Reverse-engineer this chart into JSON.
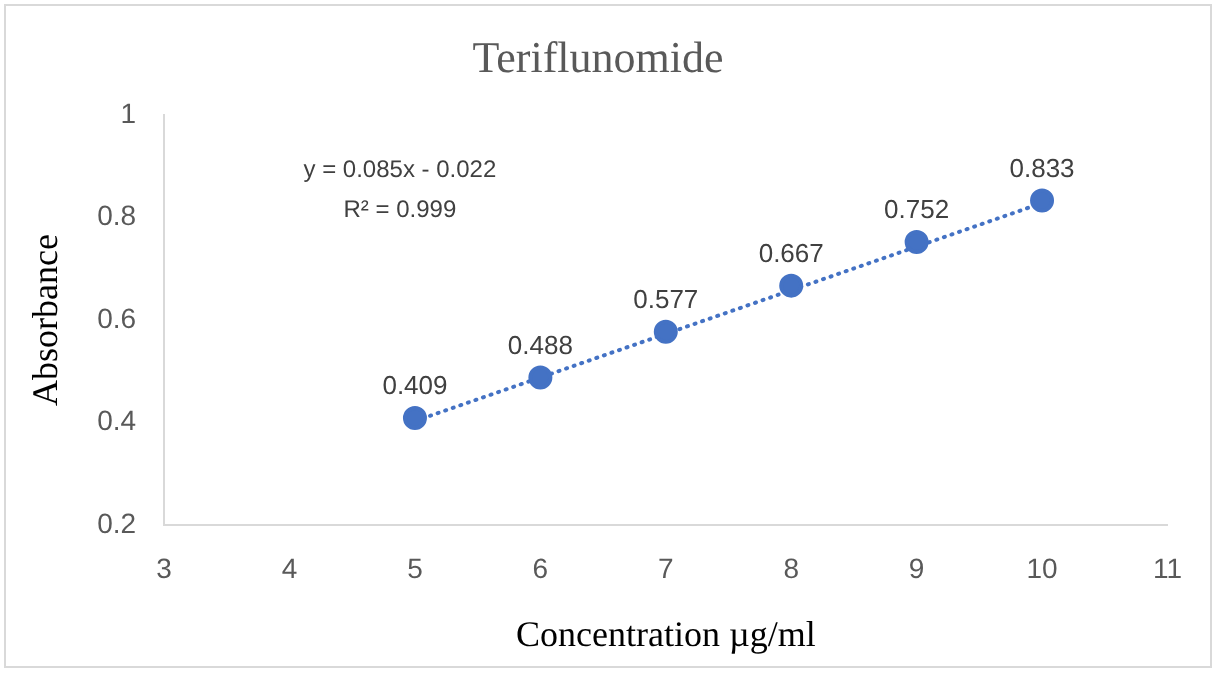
{
  "chart_data": {
    "type": "scatter",
    "title": "Teriflunomide",
    "xlabel": "Concentration µg/ml",
    "ylabel": "Absorbance",
    "x": [
      5,
      6,
      7,
      8,
      9,
      10
    ],
    "series": [
      {
        "type": "scatter",
        "color": "#4472c4",
        "values": [
          0.409,
          0.488,
          0.577,
          0.667,
          0.752,
          0.833
        ],
        "value_labels": [
          "0.409",
          "0.488",
          "0.577",
          "0.667",
          "0.752",
          "0.833"
        ],
        "marker": "circle"
      },
      {
        "type": "line",
        "color": "#4472c4",
        "x": [
          5,
          10
        ],
        "values": [
          0.403,
          0.828
        ],
        "line_style": "dotted",
        "marker": "none"
      }
    ],
    "xlim": [
      3,
      11
    ],
    "xticks": [
      3,
      4,
      5,
      6,
      7,
      8,
      9,
      10,
      11
    ],
    "ylim": [
      0.2,
      1
    ],
    "yticks": [
      0.2,
      0.4,
      0.6,
      0.8,
      1
    ],
    "grid": false,
    "legend": false,
    "annotations": [
      "y = 0.085x - 0.022",
      "R² = 0.999"
    ]
  }
}
